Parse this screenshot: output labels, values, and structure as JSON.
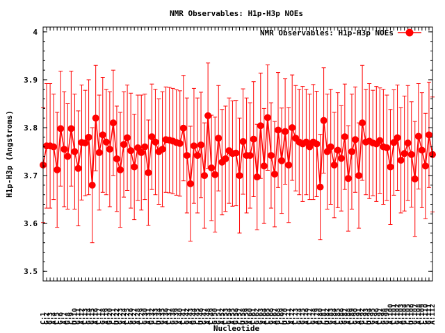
{
  "chart_data": {
    "type": "line",
    "title": "NMR Observables: H1p-H3p NOEs",
    "xlabel": "Nucleotide",
    "ylabel": "H1p-H3p (Angstroms)",
    "ylim": [
      3.48,
      4.01
    ],
    "yticks": [
      3.5,
      3.6,
      3.7,
      3.8,
      3.9,
      4.0
    ],
    "ytick_labels": [
      "3.5",
      "3.6",
      "3.7",
      "3.8",
      "3.9",
      "4"
    ],
    "grid": false,
    "legend_position": "top-right",
    "categories": [
      "C:1",
      "G:2",
      "G:3",
      "A:4",
      "C:5",
      "G:6",
      "A:7",
      "G:8",
      "C:9",
      "U:10",
      "G:11",
      "A:12",
      "C:13",
      "G:14",
      "G:15",
      "A:16",
      "C:17",
      "G:18",
      "A:19",
      "G:20",
      "C:21",
      "U:22",
      "G:23",
      "A:24",
      "C:25",
      "G:26",
      "G:27",
      "A:28",
      "C:29",
      "G:30",
      "A:31",
      "G:32",
      "C:33",
      "U:34",
      "G:35",
      "A:36",
      "C:37",
      "G:38",
      "G:39",
      "A:40",
      "C:41",
      "G:42",
      "A:43",
      "G:44",
      "C:45",
      "U:46",
      "G:47",
      "A:48",
      "C:49",
      "G:50",
      "G:51",
      "A:52",
      "C:53",
      "G:54",
      "A:55",
      "G:56",
      "C:57",
      "U:58",
      "G:59",
      "A:60",
      "C:61",
      "G:62",
      "G:63",
      "A:64",
      "C:65",
      "G:66",
      "A:67",
      "G:68",
      "C:69",
      "U:70",
      "G:71",
      "A:72",
      "C:73",
      "G:74",
      "G:75",
      "A:76",
      "C:77",
      "G:78",
      "A:79",
      "G:80",
      "C:81",
      "U:82",
      "G:83",
      "A:84",
      "C:85",
      "G:86",
      "G:87",
      "A:88",
      "C:89",
      "G:90",
      "A:91",
      "G:92",
      "C:93",
      "U:94",
      "G:95",
      "A:96",
      "C:97",
      "G:98",
      "G:99",
      "A:100",
      "C:101",
      "G:102",
      "A:103",
      "G:104",
      "C:105",
      "U:106",
      "G:107",
      "A:108",
      "C:109",
      "G:110",
      "G:111",
      "A:112"
    ],
    "series": [
      {
        "name": "NMR Observables: H1p-H3p NOEs",
        "color": "#ff0000",
        "values": [
          3.722,
          3.762,
          3.762,
          3.76,
          3.712,
          3.798,
          3.755,
          3.74,
          3.798,
          3.75,
          3.715,
          3.769,
          3.768,
          3.78,
          3.68,
          3.82,
          3.748,
          3.785,
          3.77,
          3.755,
          3.81,
          3.735,
          3.712,
          3.765,
          3.779,
          3.752,
          3.718,
          3.758,
          3.748,
          3.76,
          3.706,
          3.781,
          3.77,
          3.75,
          3.755,
          3.775,
          3.774,
          3.772,
          3.769,
          3.767,
          3.799,
          3.742,
          3.683,
          3.762,
          3.742,
          3.764,
          3.7,
          3.825,
          3.716,
          3.702,
          3.778,
          3.728,
          3.735,
          3.752,
          3.746,
          3.747,
          3.7,
          3.771,
          3.742,
          3.742,
          3.776,
          3.697,
          3.804,
          3.72,
          3.821,
          3.742,
          3.703,
          3.795,
          3.731,
          3.792,
          3.722,
          3.8,
          3.778,
          3.77,
          3.766,
          3.77,
          3.76,
          3.77,
          3.766,
          3.676,
          3.815,
          3.75,
          3.76,
          3.722,
          3.753,
          3.736,
          3.781,
          3.694,
          3.75,
          3.775,
          3.7,
          3.81,
          3.77,
          3.772,
          3.768,
          3.766,
          3.773,
          3.76,
          3.758,
          3.718,
          3.769,
          3.779,
          3.732,
          3.746,
          3.768,
          3.744,
          3.693,
          3.782,
          3.753,
          3.72,
          3.785,
          3.744
        ],
        "errors": [
          0.12,
          0.13,
          0.13,
          0.11,
          0.12,
          0.12,
          0.12,
          0.11,
          0.12,
          0.12,
          0.12,
          0.12,
          0.11,
          0.12,
          0.12,
          0.11,
          0.12,
          0.12,
          0.11,
          0.12,
          0.11,
          0.11,
          0.12,
          0.11,
          0.11,
          0.12,
          0.11,
          0.11,
          0.12,
          0.11,
          0.11,
          0.11,
          0.11,
          0.11,
          0.12,
          0.11,
          0.11,
          0.11,
          0.11,
          0.11,
          0.11,
          0.12,
          0.12,
          0.12,
          0.12,
          0.11,
          0.11,
          0.11,
          0.11,
          0.12,
          0.11,
          0.11,
          0.11,
          0.11,
          0.11,
          0.11,
          0.12,
          0.11,
          0.12,
          0.11,
          0.12,
          0.11,
          0.11,
          0.12,
          0.11,
          0.11,
          0.11,
          0.12,
          0.11,
          0.11,
          0.12,
          0.11,
          0.11,
          0.11,
          0.12,
          0.11,
          0.11,
          0.12,
          0.11,
          0.11,
          0.11,
          0.12,
          0.12,
          0.11,
          0.12,
          0.11,
          0.11,
          0.11,
          0.12,
          0.11,
          0.11,
          0.12,
          0.11,
          0.12,
          0.11,
          0.12,
          0.11,
          0.12,
          0.11,
          0.12,
          0.11,
          0.11,
          0.11,
          0.12,
          0.12,
          0.11,
          0.12,
          0.11,
          0.12,
          0.11,
          0.11,
          0.12
        ]
      }
    ]
  }
}
